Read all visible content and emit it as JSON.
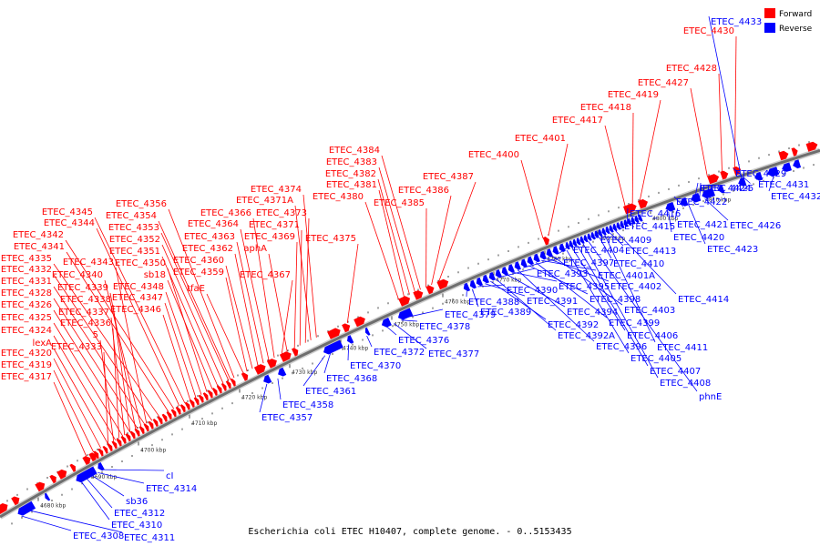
{
  "legend": {
    "forward_label": "Forward",
    "reverse_label": "Reverse",
    "forward_color": "#ff0000",
    "reverse_color": "#0000ff"
  },
  "caption": "Escherichia coli ETEC H10407, complete genome. - 0..5153435",
  "tick_labels": [
    "4680 kbp",
    "4690 kbp",
    "4700 kbp",
    "4710 kbp",
    "4720 kbp",
    "4730 kbp",
    "4740 kbp",
    "4750 kbp",
    "4760 kbp",
    "4770 kbp",
    "4780 kbp",
    "4790 kbp",
    "4800 kbp",
    "4810 kbp"
  ],
  "forward_labels": [
    "ETEC_4317",
    "ETEC_4319",
    "ETEC_4320",
    "lexA",
    "ETEC_4324",
    "ETEC_4325",
    "ETEC_4326",
    "ETEC_4328",
    "ETEC_4331",
    "ETEC_4332",
    "ETEC_4335",
    "ETEC_4341",
    "ETEC_4342",
    "ETEC_4344",
    "ETEC_4345",
    "ETEC_4333",
    "5",
    "ETEC_4336",
    "ETEC_4337",
    "ETEC_4338",
    "ETEC_4339",
    "ETEC_4340",
    "ETEC_4343",
    "ETEC_4346",
    "ETEC_4347",
    "ETEC_4348",
    "ETEC_4350",
    "sb18",
    "ETEC_4351",
    "ETEC_4352",
    "ETEC_4353",
    "ETEC_4354",
    "ETEC_4356",
    "tfaE",
    "ETEC_4359",
    "ETEC_4360",
    "ETEC_4362",
    "ETEC_4363",
    "ETEC_4364",
    "ETEC_4366",
    "ETEC_4367",
    "aphA",
    "ETEC_4369",
    "ETEC_4371",
    "ETEC_4373",
    "ETEC_4371A",
    "ETEC_4374",
    "ETEC_4375",
    "ETEC_4380",
    "ETEC_4381",
    "ETEC_4382",
    "ETEC_4383",
    "ETEC_4384",
    "ETEC_4385",
    "ETEC_4386",
    "ETEC_4387",
    "ETEC_4400",
    "ETEC_4401",
    "ETEC_4417",
    "ETEC_4418",
    "ETEC_4419",
    "ETEC_4427",
    "ETEC_4428",
    "ETEC_4430"
  ],
  "reverse_labels": [
    "ETEC_4308",
    "ETEC_4311",
    "ETEC_4310",
    "ETEC_4312",
    "sb36",
    "ETEC_4314",
    "cI",
    "ETEC_4357",
    "ETEC_4358",
    "ETEC_4361",
    "ETEC_4368",
    "ETEC_4370",
    "ETEC_4372",
    "ETEC_4376",
    "ETEC_4377",
    "ETEC_4378",
    "ETEC_4379",
    "ETEC_4388",
    "ETEC_4389",
    "ETEC_4390",
    "ETEC_4391",
    "ETEC_4392",
    "ETEC_4392A",
    "ETEC_4393",
    "ETEC_4394",
    "ETEC_4395",
    "ETEC_4396",
    "ETEC_4397",
    "ETEC_4398",
    "ETEC_4399",
    "ETEC_4401A",
    "ETEC_4402",
    "ETEC_4403",
    "ETEC_4404",
    "ETEC_4405",
    "ETEC_4406",
    "ETEC_4407",
    "ETEC_4408",
    "phnE",
    "ETEC_4409",
    "ETEC_4410",
    "ETEC_4411",
    "ETEC_4413",
    "ETEC_4414",
    "ETEC_4415",
    "ETEC_4416",
    "ETEC_4420",
    "ETEC_4421",
    "ETEC_4422",
    "ETEC_4423",
    "ETEC_4424",
    "ETEC_4425",
    "ETEC_4426",
    "ETEC_4429",
    "ETEC_4431",
    "ETEC_4432",
    "ETEC_4433"
  ]
}
